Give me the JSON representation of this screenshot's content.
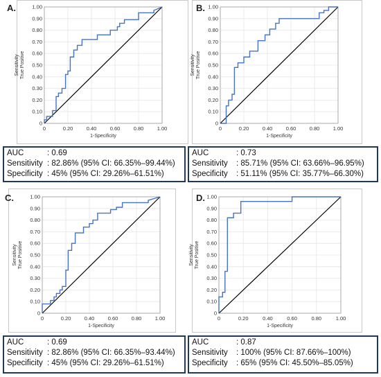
{
  "chart_data": [
    {
      "type": "line",
      "panel": "A.",
      "xlabel": "1-Specificity",
      "ylabel": [
        "Sensitivity",
        "True Positive"
      ],
      "xlim": [
        0,
        1
      ],
      "ylim": [
        0,
        1
      ],
      "xticks": [
        "0",
        "0.20",
        "0.40",
        "0.60",
        "0.80",
        "1.00"
      ],
      "yticks": [
        "0",
        "0.10",
        "0.20",
        "0.30",
        "0.40",
        "0.50",
        "0.60",
        "0.70",
        "0.80",
        "0.90",
        "1.00"
      ],
      "colors": {
        "roc": "#4472c4",
        "reference": "#000000"
      },
      "series": [
        {
          "x": [
            0,
            0,
            0.02,
            0.02,
            0.07,
            0.07,
            0.1,
            0.1,
            0.12,
            0.12,
            0.15,
            0.15,
            0.18,
            0.18,
            0.2,
            0.2,
            0.22,
            0.22,
            0.25,
            0.25,
            0.28,
            0.28,
            0.32,
            0.32,
            0.45,
            0.45,
            0.56,
            0.56,
            0.62,
            0.62,
            0.64,
            0.64,
            0.68,
            0.68,
            0.8,
            0.8,
            0.93,
            0.93,
            1
          ],
          "y": [
            0,
            0.03,
            0.03,
            0.06,
            0.06,
            0.11,
            0.11,
            0.23,
            0.23,
            0.26,
            0.26,
            0.3,
            0.3,
            0.42,
            0.42,
            0.45,
            0.45,
            0.57,
            0.57,
            0.63,
            0.63,
            0.67,
            0.67,
            0.72,
            0.72,
            0.76,
            0.76,
            0.8,
            0.8,
            0.83,
            0.83,
            0.86,
            0.86,
            0.89,
            0.89,
            0.95,
            0.95,
            0.97,
            1
          ]
        }
      ],
      "stats": [
        {
          "key": "AUC",
          "value": ": 0.69"
        },
        {
          "key": "Sensitivity",
          "value": ": 82.86% (95% CI: 66.35%–99.44%)"
        },
        {
          "key": "Specificity",
          "value": ": 45% (95% CI: 29.26%–61.51%)"
        }
      ]
    },
    {
      "type": "line",
      "panel": "B.",
      "xlabel": "1-Specificity",
      "ylabel": [
        "Sensitivity",
        "True Positive"
      ],
      "xlim": [
        0,
        1
      ],
      "ylim": [
        0,
        1
      ],
      "xticks": [
        "0",
        "0.20",
        "0.40",
        "0.60",
        "0.80",
        "1.00"
      ],
      "yticks": [
        "0",
        "0.10",
        "0.20",
        "0.30",
        "0.40",
        "0.50",
        "0.60",
        "0.70",
        "0.80",
        "0.90",
        "1.00"
      ],
      "colors": {
        "roc": "#4472c4",
        "reference": "#000000"
      },
      "series": [
        {
          "x": [
            0,
            0.05,
            0.05,
            0.07,
            0.07,
            0.1,
            0.1,
            0.12,
            0.12,
            0.15,
            0.15,
            0.2,
            0.2,
            0.25,
            0.25,
            0.32,
            0.32,
            0.38,
            0.38,
            0.42,
            0.42,
            0.47,
            0.47,
            0.5,
            0.5,
            0.84,
            0.84,
            0.88,
            0.88,
            0.92,
            0.92,
            1
          ],
          "y": [
            0,
            0,
            0.15,
            0.15,
            0.2,
            0.2,
            0.25,
            0.25,
            0.48,
            0.48,
            0.52,
            0.52,
            0.57,
            0.57,
            0.62,
            0.62,
            0.71,
            0.71,
            0.76,
            0.76,
            0.81,
            0.81,
            0.86,
            0.86,
            0.9,
            0.9,
            0.95,
            0.95,
            0.97,
            0.97,
            1,
            1
          ]
        }
      ],
      "stats": [
        {
          "key": "AUC",
          "value": ": 0.73"
        },
        {
          "key": "Sensitivity",
          "value": ": 85.71% (95% CI: 63.66%–96.95%)"
        },
        {
          "key": "Specificity",
          "value": ": 51.11% (95% CI: 35.77%–66.30%)"
        }
      ]
    },
    {
      "type": "line",
      "panel": "C.",
      "xlabel": "1-Specificity",
      "ylabel": [
        "Sensitivity",
        "True Positive"
      ],
      "xlim": [
        0,
        1
      ],
      "ylim": [
        0,
        1
      ],
      "xticks": [
        "0",
        "0.20",
        "0.40",
        "0.60",
        "0.80",
        "1.00"
      ],
      "yticks": [
        "0",
        "0.10",
        "0.20",
        "0.30",
        "0.40",
        "0.50",
        "0.60",
        "0.70",
        "0.80",
        "0.90",
        "1.00"
      ],
      "colors": {
        "roc": "#4472c4",
        "reference": "#000000"
      },
      "series": [
        {
          "x": [
            0,
            0,
            0.07,
            0.07,
            0.1,
            0.1,
            0.12,
            0.12,
            0.15,
            0.15,
            0.17,
            0.17,
            0.2,
            0.2,
            0.22,
            0.22,
            0.25,
            0.25,
            0.28,
            0.28,
            0.35,
            0.35,
            0.4,
            0.4,
            0.43,
            0.43,
            0.47,
            0.47,
            0.58,
            0.58,
            0.63,
            0.63,
            0.68,
            0.68,
            0.9,
            0.9,
            1
          ],
          "y": [
            0,
            0.08,
            0.08,
            0.11,
            0.11,
            0.14,
            0.14,
            0.17,
            0.17,
            0.2,
            0.2,
            0.23,
            0.23,
            0.37,
            0.37,
            0.54,
            0.54,
            0.6,
            0.6,
            0.69,
            0.69,
            0.74,
            0.74,
            0.77,
            0.77,
            0.8,
            0.8,
            0.86,
            0.86,
            0.89,
            0.89,
            0.91,
            0.91,
            0.95,
            0.95,
            0.97,
            1
          ]
        }
      ],
      "stats": [
        {
          "key": "AUC",
          "value": ": 0.69"
        },
        {
          "key": "Sensitivity",
          "value": ": 82.86% (95% CI: 66.35%–93.44%)"
        },
        {
          "key": "Specificity",
          "value": ": 45% (95% CI: 29.26%–61.51%)"
        }
      ]
    },
    {
      "type": "line",
      "panel": "D.",
      "xlabel": "1-Specificity",
      "ylabel": [
        "Sensitivity",
        "True Positive"
      ],
      "xlim": [
        0,
        1
      ],
      "ylim": [
        0,
        1
      ],
      "xticks": [
        "0",
        "0.20",
        "0.40",
        "0.60",
        "0.80",
        "1.00"
      ],
      "yticks": [
        "0",
        "0.10",
        "0.20",
        "0.30",
        "0.40",
        "0.50",
        "0.60",
        "0.70",
        "0.80",
        "0.90",
        "1.00"
      ],
      "colors": {
        "roc": "#4472c4",
        "reference": "#000000"
      },
      "series": [
        {
          "x": [
            0,
            0,
            0.03,
            0.03,
            0.05,
            0.05,
            0.07,
            0.07,
            0.1,
            0.1,
            0.12,
            0.12,
            0.18,
            0.18,
            0.28,
            0.28,
            0.6,
            0.6,
            1
          ],
          "y": [
            0,
            0.14,
            0.14,
            0.18,
            0.18,
            0.36,
            0.36,
            0.82,
            0.82,
            0.82,
            0.82,
            0.86,
            0.86,
            0.96,
            0.96,
            0.96,
            0.96,
            1,
            1
          ]
        }
      ],
      "stats": [
        {
          "key": "AUC",
          "value": ": 0.87"
        },
        {
          "key": "Sensitivity",
          "value": ": 100% (95% CI: 87.66%–100%)"
        },
        {
          "key": "Specificity",
          "value": ": 65% (95% CI: 45.50%–85.05%)"
        }
      ]
    }
  ]
}
